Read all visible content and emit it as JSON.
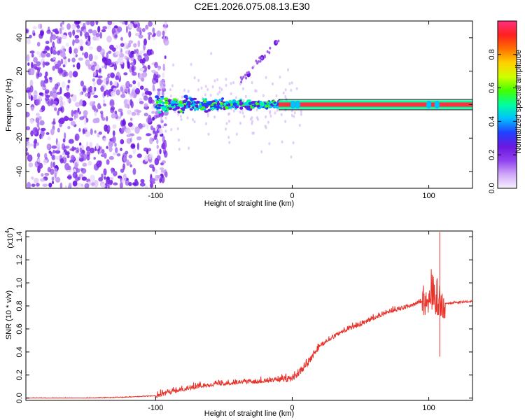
{
  "title": "C2E1.2026.075.08.13.E30",
  "colors": {
    "snr_line": "#e8322a",
    "axis": "#000000",
    "colorbar_stops": [
      "#f8f0ff",
      "#d0a8f8",
      "#9040f0",
      "#6a18e0",
      "#2040ff",
      "#00c0ff",
      "#00ffa0",
      "#40ff00",
      "#d0ff00",
      "#ffd000",
      "#ff7000",
      "#ff2020",
      "#ff3080"
    ]
  },
  "chart_data": [
    {
      "type": "heatmap",
      "xlabel": "Height of straight line (km)",
      "ylabel": "Frequency (Hz)",
      "xlim": [
        -195,
        132
      ],
      "ylim": [
        -50,
        50
      ],
      "x_ticks": [
        "-100",
        "0",
        "100"
      ],
      "x_tick_values": [
        -100,
        0,
        100
      ],
      "y_ticks": [
        "-40",
        "-20",
        "0",
        "20",
        "40"
      ],
      "y_tick_values": [
        -40,
        -20,
        0,
        20,
        40
      ],
      "colorbar": {
        "label": "Normalized spectral amplitude",
        "ticks": [
          "0.0",
          "0.2",
          "0.4",
          "0.6",
          "0.8"
        ],
        "tick_values": [
          0.0,
          0.2,
          0.4,
          0.6,
          0.8
        ],
        "range": [
          0,
          1
        ]
      },
      "features": {
        "noise_region_x": [
          -195,
          -100
        ],
        "ridge_freq_hz": 0,
        "strong_ridge_x": [
          -10,
          132
        ],
        "harmonic_streak": [
          [
            -32,
            18
          ],
          [
            -22,
            28
          ],
          [
            -12,
            37
          ]
        ]
      }
    },
    {
      "type": "line",
      "xlabel": "Height of straight line (km)",
      "ylabel": "SNR (10 * v/v)",
      "y_scale_label": "(x10",
      "y_scale_exp": "4",
      "y_scale_suffix": ")",
      "xlim": [
        -195,
        132
      ],
      "ylim": [
        -0.02,
        1.45
      ],
      "x_ticks": [
        "-100",
        "0",
        "100"
      ],
      "x_tick_values": [
        -100,
        0,
        100
      ],
      "y_ticks": [
        "0.0",
        "0.2",
        "0.4",
        "0.6",
        "0.8",
        "1.0",
        "1.2",
        "1.4"
      ],
      "y_tick_values": [
        0.0,
        0.2,
        0.4,
        0.6,
        0.8,
        1.0,
        1.2,
        1.4
      ],
      "series": [
        {
          "x": [
            -195,
            -150,
            -120,
            -100,
            -90,
            -80,
            -60,
            -40,
            -20,
            -10,
            0,
            5,
            10,
            20,
            30,
            40,
            50,
            60,
            70,
            80,
            90,
            95,
            100,
            105,
            108,
            112,
            120,
            132
          ],
          "y": [
            0.0,
            0.0,
            0.01,
            0.02,
            0.05,
            0.08,
            0.12,
            0.14,
            0.15,
            0.16,
            0.17,
            0.22,
            0.28,
            0.45,
            0.53,
            0.6,
            0.64,
            0.7,
            0.75,
            0.78,
            0.82,
            0.85,
            0.86,
            0.86,
            0.85,
            0.82,
            0.83,
            0.84
          ]
        }
      ]
    }
  ]
}
